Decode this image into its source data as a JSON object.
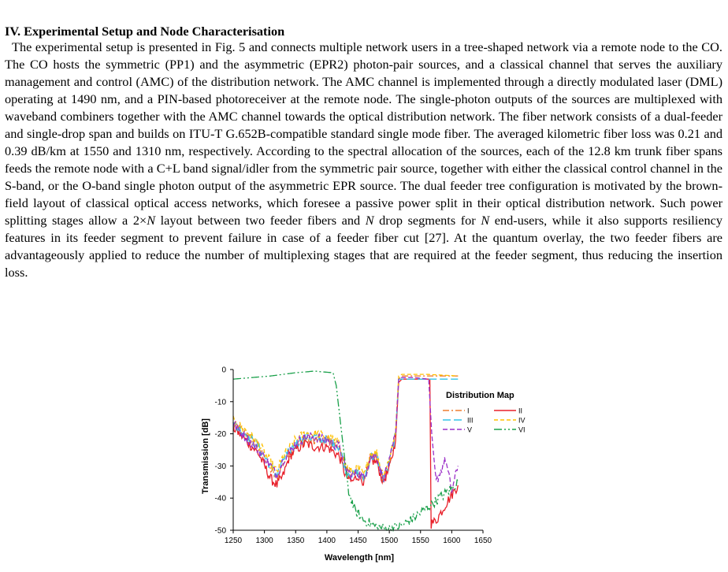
{
  "section": {
    "heading": "IV.  Experimental Setup and Node Characterisation",
    "paragraph_parts": [
      "The experimental setup is presented in Fig. 5 and connects multiple network users in a tree-shaped network via a remote node to the CO. The CO hosts the symmetric (PP1) and the asymmetric (EPR2) photon-pair sources, and a classical channel that serves the auxiliary management and control (AMC) of the distribution network. The AMC channel is implemented through a directly modulated laser (DML) operating at 1490 nm, and a PIN-based photoreceiver at the remote node. The single-photon outputs of the sources are multiplexed with waveband combiners together with the AMC channel towards the optical distribution network. The fiber network consists of a dual-feeder and single-drop span and builds on ITU-T G.652B-compatible standard single mode fiber. The averaged kilometric fiber loss was 0.21 and 0.39 dB/km at 1550 and 1310 nm, respectively. According to the spectral allocation of the sources, each of the 12.8 km trunk fiber spans feeds the remote node with a C+L band signal/idler from the symmetric pair source, together with either the classical control channel in the S-band, or the O-band single photon output of the asymmetric EPR source. The dual feeder tree configuration is motivated by the brown-field layout of classical optical access networks, which foresee a passive power split in their optical distribution network. Such power splitting stages allow a 2×",
      "N",
      " layout between two feeder fibers and ",
      "N",
      " drop segments for ",
      "N",
      " end-users, while it also supports resiliency features in its feeder segment to prevent failure in case of a feeder fiber cut [27]. At the quantum overlay, the two feeder fibers are advantageously applied to reduce the number of multiplexing stages that are required at the feeder segment, thus reducing the insertion loss."
    ]
  },
  "chart_data": {
    "type": "line",
    "xlabel": "Wavelength [nm]",
    "ylabel": "Transmission [dB]",
    "xlim": [
      1250,
      1650
    ],
    "ylim": [
      -50,
      0
    ],
    "x_ticks": [
      "1250",
      "1300",
      "1350",
      "1400",
      "1450",
      "1500",
      "1550",
      "1600",
      "1650"
    ],
    "y_ticks": [
      "0",
      "-10",
      "-20",
      "-30",
      "-40",
      "-50"
    ],
    "grid": false,
    "legend_title": "Distribution Map",
    "legend_position": "right",
    "series": [
      {
        "name": "I",
        "color": "#ed7d31",
        "dash": "8,3,2,3",
        "x": [
          1250,
          1270,
          1290,
          1310,
          1320,
          1330,
          1350,
          1365,
          1380,
          1400,
          1420,
          1430,
          1440,
          1450,
          1460,
          1470,
          1480,
          1490,
          1500,
          1510,
          1515,
          1520,
          1560,
          1610
        ],
        "y": [
          -17,
          -20,
          -24,
          -31,
          -34,
          -29,
          -24,
          -22,
          -22,
          -22,
          -24,
          -31,
          -33,
          -32,
          -34,
          -27,
          -27,
          -34,
          -29,
          -20,
          -3,
          -2,
          -2,
          -2
        ]
      },
      {
        "name": "II",
        "color": "#e8202a",
        "dash": "",
        "x": [
          1250,
          1270,
          1290,
          1300,
          1310,
          1320,
          1330,
          1340,
          1350,
          1365,
          1380,
          1400,
          1420,
          1430,
          1440,
          1450,
          1460,
          1470,
          1480,
          1490,
          1500,
          1510,
          1515,
          1520,
          1540,
          1565,
          1567,
          1575,
          1590,
          1610
        ],
        "y": [
          -18,
          -22,
          -26,
          -30,
          -34,
          -36,
          -33,
          -27,
          -25,
          -23,
          -24,
          -24,
          -27,
          -33,
          -35,
          -33,
          -35,
          -28,
          -29,
          -35,
          -31,
          -22,
          -4,
          -3,
          -3,
          -3,
          -48,
          -47,
          -42,
          -36
        ]
      },
      {
        "name": "III",
        "color": "#33c4e8",
        "dash": "10,4",
        "x": [
          1250,
          1270,
          1290,
          1310,
          1320,
          1330,
          1350,
          1365,
          1380,
          1400,
          1420,
          1430,
          1440,
          1450,
          1460,
          1470,
          1480,
          1490,
          1500,
          1510,
          1515,
          1520,
          1560,
          1610
        ],
        "y": [
          -17,
          -20,
          -24,
          -30,
          -33,
          -28,
          -23,
          -21,
          -21,
          -22,
          -24,
          -31,
          -33,
          -32,
          -34,
          -27,
          -27,
          -34,
          -29,
          -20,
          -3,
          -3,
          -3,
          -3
        ]
      },
      {
        "name": "IV",
        "color": "#ffc000",
        "dash": "5,3",
        "x": [
          1250,
          1270,
          1290,
          1310,
          1320,
          1330,
          1350,
          1365,
          1380,
          1400,
          1420,
          1430,
          1440,
          1450,
          1460,
          1470,
          1480,
          1490,
          1500,
          1510,
          1515,
          1520,
          1560,
          1610
        ],
        "y": [
          -16,
          -19,
          -23,
          -29,
          -32,
          -27,
          -22,
          -20,
          -20,
          -21,
          -23,
          -30,
          -32,
          -31,
          -33,
          -26,
          -26,
          -33,
          -28,
          -19,
          -2,
          -1.5,
          -1.5,
          -2
        ]
      },
      {
        "name": "V",
        "color": "#9b30c8",
        "dash": "6,3",
        "x": [
          1250,
          1270,
          1290,
          1310,
          1320,
          1330,
          1350,
          1365,
          1380,
          1400,
          1420,
          1430,
          1440,
          1450,
          1460,
          1470,
          1480,
          1490,
          1500,
          1510,
          1515,
          1520,
          1540,
          1563,
          1568,
          1575,
          1590,
          1600,
          1610
        ],
        "y": [
          -17,
          -21,
          -25,
          -30,
          -33,
          -28,
          -23,
          -21,
          -21,
          -22,
          -24,
          -31,
          -33,
          -32,
          -34,
          -27,
          -27,
          -34,
          -29,
          -20,
          -3,
          -2.5,
          -2.5,
          -3,
          -20,
          -35,
          -28,
          -38,
          -30
        ]
      },
      {
        "name": "VI",
        "color": "#1aa04a",
        "dash": "10,3,2,3,2,3",
        "x": [
          1250,
          1280,
          1310,
          1350,
          1380,
          1410,
          1415,
          1425,
          1435,
          1445,
          1460,
          1480,
          1500,
          1520,
          1540,
          1560,
          1580,
          1600,
          1610
        ],
        "y": [
          -3,
          -2.5,
          -2,
          -1,
          -0.5,
          -1,
          -5,
          -22,
          -38,
          -44,
          -47,
          -49,
          -49.5,
          -48.5,
          -46,
          -43,
          -40,
          -37,
          -35
        ]
      }
    ]
  }
}
